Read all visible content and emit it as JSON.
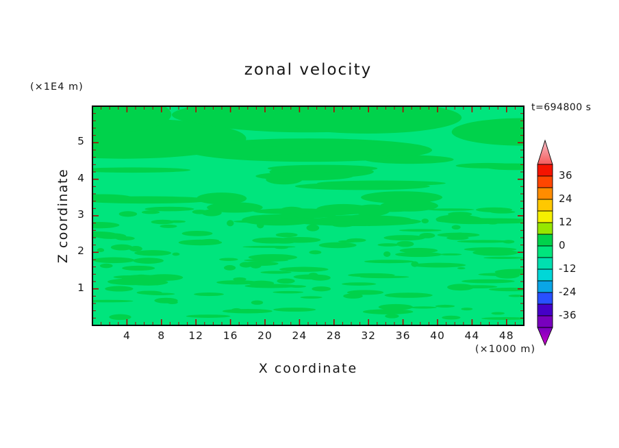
{
  "chart_data": {
    "type": "filled_contour",
    "title": "zonal velocity",
    "timestamp": "t=694800 s",
    "xlabel": "X coordinate",
    "x_units": "(×1000 m)",
    "ylabel": "Z coordinate",
    "y_units": "(×1E4 m)",
    "x_range": [
      0,
      50
    ],
    "y_range": [
      0,
      6
    ],
    "x_ticks": [
      4,
      8,
      12,
      16,
      20,
      24,
      28,
      32,
      36,
      40,
      44,
      48
    ],
    "y_ticks": [
      1,
      2,
      3,
      4,
      5
    ],
    "grid": false,
    "legend_position": "right-colorbar",
    "field": {
      "note": "Velocity field is near zero everywhere: a background in the -6..0 band with irregular horizontal streaky patches of the 0..6 band; larger smooth patches near the top of the domain, fine streaks in the middle and lower portion.",
      "base_band": [
        -6,
        0
      ],
      "base_color": "#00e57d",
      "patch_band": [
        0,
        6
      ],
      "patch_color": "#00d24b"
    },
    "colorbar": {
      "labels": [
        "36",
        "24",
        "12",
        "0",
        "-12",
        "-24",
        "-36"
      ],
      "label_values": [
        36,
        24,
        12,
        0,
        -12,
        -24,
        -36
      ],
      "cell_ranges": [
        [
          36,
          42
        ],
        [
          30,
          36
        ],
        [
          24,
          30
        ],
        [
          18,
          24
        ],
        [
          12,
          18
        ],
        [
          6,
          12
        ],
        [
          0,
          6
        ],
        [
          -6,
          0
        ],
        [
          -12,
          -6
        ],
        [
          -18,
          -12
        ],
        [
          -24,
          -18
        ],
        [
          -30,
          -24
        ],
        [
          -36,
          -30
        ],
        [
          -42,
          -36
        ]
      ],
      "cell_colors": [
        "#f51400",
        "#ff4600",
        "#ff8c00",
        "#ffc800",
        "#f5f000",
        "#96e600",
        "#00d24b",
        "#00e57d",
        "#00e0b0",
        "#00d7d7",
        "#0aa5e6",
        "#2850ff",
        "#4600c8",
        "#7800be"
      ],
      "over_arrow_colors": [
        "#f7bec8",
        "#f55a5a"
      ],
      "under_arrow_colors": [
        "#7800be",
        "#c800c8"
      ]
    },
    "tick_color": "#b40000",
    "frame_color": "#000000"
  }
}
